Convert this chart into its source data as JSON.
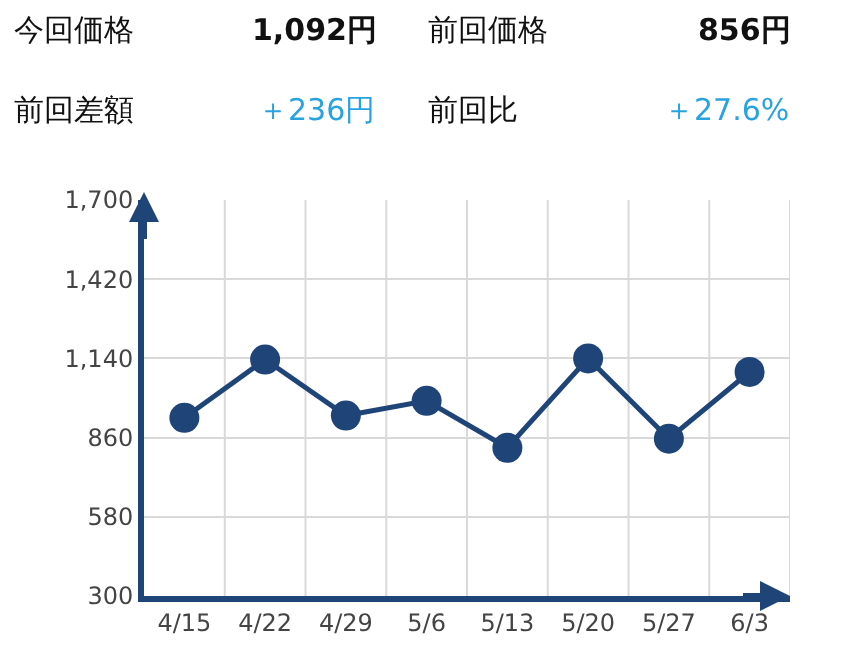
{
  "chart_data": {
    "type": "line",
    "categories": [
      "4/15",
      "4/22",
      "4/29",
      "5/6",
      "5/13",
      "5/20",
      "5/27",
      "6/3"
    ],
    "series": [
      {
        "color": "#1f4478",
        "values": [
          930,
          1136,
          938,
          990,
          824,
          1140,
          856,
          1092
        ]
      }
    ],
    "ylim": [
      300,
      1700
    ],
    "yticks": [
      {
        "value": 300,
        "label": "300"
      },
      {
        "value": 580,
        "label": "580"
      },
      {
        "value": 860,
        "label": "860"
      },
      {
        "value": 1140,
        "label": "1,140"
      },
      {
        "value": 1420,
        "label": "1,420"
      },
      {
        "value": 1700,
        "label": "1,700"
      }
    ],
    "grid": true,
    "marker": "circle",
    "line_style": "solid",
    "annotations": [
      "今回価格",
      "1,092円",
      "前回価格",
      "856円",
      "前回差額",
      "＋236円",
      "前回比",
      "＋27.6%"
    ]
  }
}
